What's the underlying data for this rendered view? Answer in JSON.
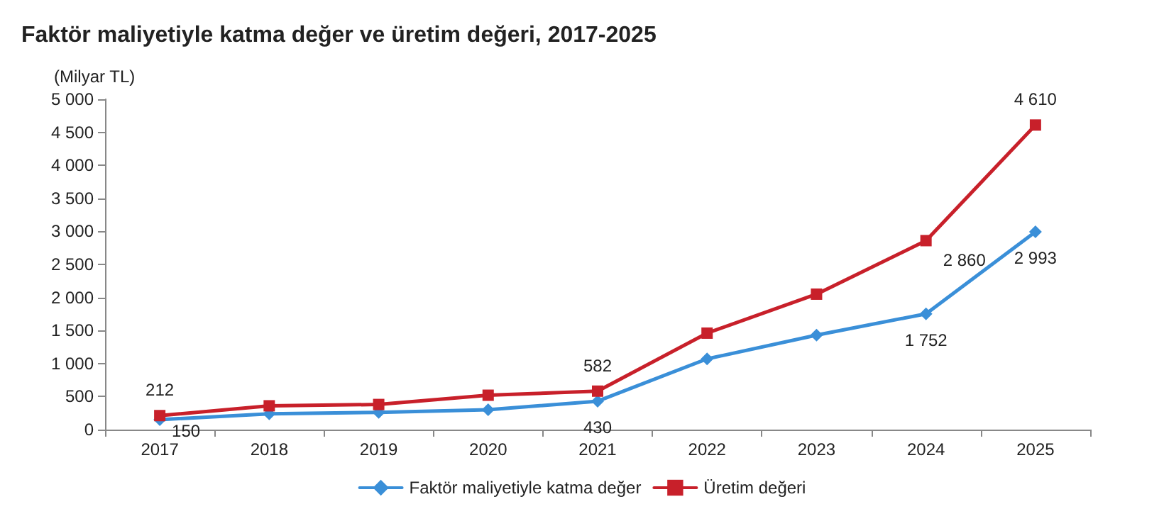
{
  "chart_data": {
    "type": "line",
    "title": "Faktör maliyetiyle katma değer ve üretim değeri, 2017-2025",
    "ylabel": "(Milyar TL)",
    "categories": [
      "2017",
      "2018",
      "2019",
      "2020",
      "2021",
      "2022",
      "2023",
      "2024",
      "2025"
    ],
    "series": [
      {
        "name": "Faktör maliyetiyle katma değer",
        "color": "#3a8fd8",
        "marker": "diamond",
        "values": [
          150,
          240,
          260,
          300,
          430,
          1070,
          1430,
          1752,
          2993
        ],
        "value_labels": [
          "150",
          null,
          null,
          null,
          "430",
          null,
          null,
          "1 752",
          "2 993"
        ]
      },
      {
        "name": "Üretim değeri",
        "color": "#c8202a",
        "marker": "square",
        "values": [
          212,
          360,
          380,
          520,
          582,
          1460,
          2050,
          2860,
          4610
        ],
        "value_labels": [
          "212",
          null,
          null,
          null,
          "582",
          null,
          null,
          "2 860",
          "4 610"
        ]
      }
    ],
    "ylim": [
      0,
      5000
    ],
    "yticks": [
      0,
      500,
      {
        "value": 1000,
        "label": "1 000"
      },
      {
        "value": 1500,
        "label": "1 500"
      },
      {
        "value": 2000,
        "label": "2 000"
      },
      {
        "value": 2500,
        "label": "2 500"
      },
      {
        "value": 3000,
        "label": "3 000"
      },
      {
        "value": 3500,
        "label": "3 500"
      },
      {
        "value": 4000,
        "label": "4 000"
      },
      {
        "value": 4500,
        "label": "4 500"
      },
      {
        "value": 5000,
        "label": "5 000"
      }
    ],
    "grid": false,
    "legend": "bottom",
    "line_style": "solid"
  }
}
